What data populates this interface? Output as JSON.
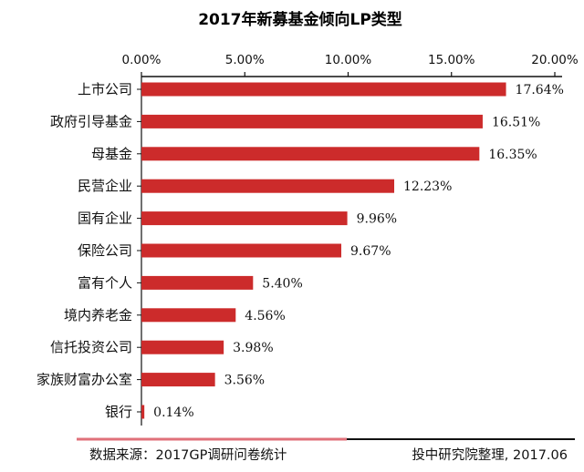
{
  "chart_data": {
    "type": "bar",
    "orientation": "horizontal",
    "title": "2017年新募基金倾向LP类型",
    "categories": [
      "上市公司",
      "政府引导基金",
      "母基金",
      "民营企业",
      "国有企业",
      "保险公司",
      "富有个人",
      "境内养老金",
      "信托投资公司",
      "家族财富办公室",
      "银行"
    ],
    "values": [
      17.64,
      16.51,
      16.35,
      12.23,
      9.96,
      9.67,
      5.4,
      4.56,
      3.98,
      3.56,
      0.14
    ],
    "value_labels": [
      "17.64%",
      "16.51%",
      "16.35%",
      "12.23%",
      "9.96%",
      "9.67%",
      "5.40%",
      "4.56%",
      "3.98%",
      "3.56%",
      "0.14%"
    ],
    "xlim": [
      0,
      20
    ],
    "x_ticks": [
      0,
      5,
      10,
      15,
      20
    ],
    "x_tick_labels": [
      "0.00%",
      "5.00%",
      "10.00%",
      "15.00%",
      "20.00%"
    ],
    "x_axis_position": "top",
    "grid": false,
    "bar_color": "#cc2b2b"
  },
  "footer": {
    "source": "数据来源：2017GP调研问卷统计",
    "credit": "投中研究院整理, 2017.06",
    "line_accent_color": "#e0707a"
  }
}
